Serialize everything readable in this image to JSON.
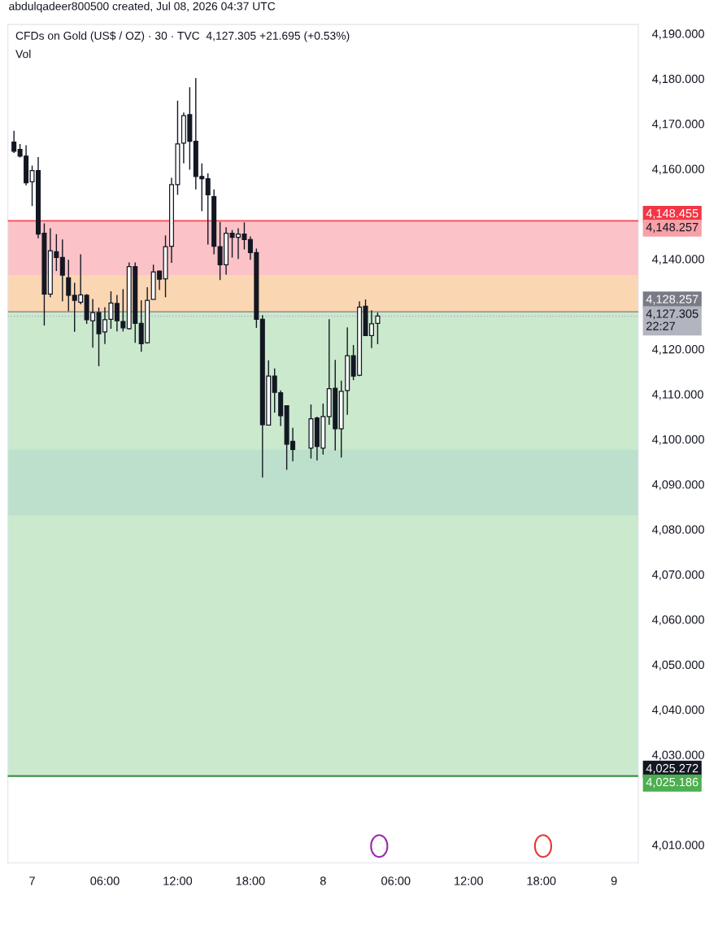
{
  "chart_data": {
    "type": "candlestick",
    "title": "CFDs on Gold (US$ / OZ) · 30 · TVC  4,127.305 +21.695 (+0.53%)",
    "annotations": [
      "abdulqadeer800500 created, Jul 08, 2026 04:37 UTC",
      "Vol"
    ],
    "color": "#131722",
    "x": [
      "2026-07-06T22:30",
      "2026-07-06T23:00",
      "2026-07-06T23:30",
      "2026-07-07T00:00",
      "2026-07-07T00:30",
      "2026-07-07T01:00",
      "2026-07-07T01:30",
      "2026-07-07T02:00",
      "2026-07-07T02:30",
      "2026-07-07T03:00",
      "2026-07-07T03:30",
      "2026-07-07T04:00",
      "2026-07-07T04:30",
      "2026-07-07T05:00",
      "2026-07-07T05:30",
      "2026-07-07T06:00",
      "2026-07-07T06:30",
      "2026-07-07T07:00",
      "2026-07-07T07:30",
      "2026-07-07T08:00",
      "2026-07-07T08:30",
      "2026-07-07T09:00",
      "2026-07-07T09:30",
      "2026-07-07T10:00",
      "2026-07-07T10:30",
      "2026-07-07T11:00",
      "2026-07-07T11:30",
      "2026-07-07T12:00",
      "2026-07-07T12:30",
      "2026-07-07T13:00",
      "2026-07-07T13:30",
      "2026-07-07T14:00",
      "2026-07-07T14:30",
      "2026-07-07T15:00",
      "2026-07-07T15:30",
      "2026-07-07T16:00",
      "2026-07-07T16:30",
      "2026-07-07T17:00",
      "2026-07-07T17:30",
      "2026-07-07T18:00",
      "2026-07-07T18:30",
      "2026-07-07T19:00",
      "2026-07-07T19:30",
      "2026-07-07T20:00",
      "2026-07-07T20:30",
      "2026-07-07T21:00",
      "2026-07-07T21:30",
      "2026-07-07T23:00",
      "2026-07-07T23:30",
      "2026-07-08T00:00",
      "2026-07-08T00:30",
      "2026-07-08T01:00",
      "2026-07-08T01:30",
      "2026-07-08T02:00",
      "2026-07-08T02:30",
      "2026-07-08T03:00",
      "2026-07-08T03:30",
      "2026-07-08T04:00",
      "2026-07-08T04:30"
    ],
    "ohlc": [
      [
        4165.9,
        4168.4,
        4163.5,
        4163.9
      ],
      [
        4164.3,
        4165.5,
        4162.5,
        4162.8
      ],
      [
        4162.8,
        4165.2,
        4156.3,
        4156.9
      ],
      [
        4157.1,
        4160.7,
        4151.7,
        4159.6
      ],
      [
        4159.6,
        4162.6,
        4144.6,
        4145.5
      ],
      [
        4145.7,
        4147.9,
        4125.2,
        4132.2
      ],
      [
        4132.2,
        4146.8,
        4131.5,
        4141.8
      ],
      [
        4141.6,
        4145.5,
        4137.3,
        4140.3
      ],
      [
        4140.3,
        4144.3,
        4130.6,
        4136.4
      ],
      [
        4135.8,
        4139.8,
        4128.4,
        4131.9
      ],
      [
        4131.9,
        4134.7,
        4123.8,
        4130.8
      ],
      [
        4130.4,
        4141.0,
        4129.9,
        4132.0
      ],
      [
        4131.9,
        4132.2,
        4125.6,
        4126.5
      ],
      [
        4126.3,
        4131.1,
        4120.3,
        4128.1
      ],
      [
        4128.1,
        4129.2,
        4116.2,
        4123.4
      ],
      [
        4123.8,
        4129.3,
        4121.1,
        4126.5
      ],
      [
        4126.6,
        4132.8,
        4124.5,
        4130.2
      ],
      [
        4130.1,
        4132.0,
        4123.9,
        4126.3
      ],
      [
        4126.1,
        4133.3,
        4123.9,
        4124.7
      ],
      [
        4124.5,
        4139.2,
        4124.3,
        4138.3
      ],
      [
        4138.3,
        4139.2,
        4121.4,
        4125.7
      ],
      [
        4125.7,
        4130.8,
        4119.4,
        4121.2
      ],
      [
        4121.4,
        4133.7,
        4121.2,
        4130.8
      ],
      [
        4131.0,
        4138.7,
        4131.0,
        4137.1
      ],
      [
        4137.3,
        4137.4,
        4133.1,
        4135.5
      ],
      [
        4135.6,
        4145.2,
        4131.5,
        4142.7
      ],
      [
        4142.8,
        4158.0,
        4139.1,
        4156.5
      ],
      [
        4156.5,
        4175.1,
        4154.2,
        4165.5
      ],
      [
        4165.7,
        4172.5,
        4161.2,
        4171.8
      ],
      [
        4172.0,
        4178.1,
        4159.8,
        4166.1
      ],
      [
        4166.1,
        4180.1,
        4155.4,
        4158.3
      ],
      [
        4158.3,
        4161.2,
        4150.6,
        4157.8
      ],
      [
        4157.8,
        4159.0,
        4143.2,
        4154.2
      ],
      [
        4153.8,
        4155.4,
        4141.0,
        4142.8
      ],
      [
        4142.7,
        4148.2,
        4135.3,
        4138.7
      ],
      [
        4138.7,
        4147.0,
        4136.5,
        4145.7
      ],
      [
        4145.7,
        4146.4,
        4140.3,
        4144.8
      ],
      [
        4144.8,
        4146.8,
        4140.0,
        4145.5
      ],
      [
        4145.5,
        4148.1,
        4142.1,
        4144.3
      ],
      [
        4144.3,
        4145.0,
        4139.8,
        4141.4
      ],
      [
        4141.4,
        4142.3,
        4124.7,
        4126.6
      ],
      [
        4126.6,
        4127.5,
        4091.5,
        4103.2
      ],
      [
        4103.1,
        4117.5,
        4103.1,
        4114.0
      ],
      [
        4114.0,
        4115.7,
        4105.9,
        4110.4
      ],
      [
        4110.3,
        4110.8,
        4102.9,
        4105.2
      ],
      [
        4107.4,
        4107.4,
        4093.2,
        4098.9
      ],
      [
        4099.5,
        4102.5,
        4095.1,
        4097.7
      ],
      [
        4098.0,
        4107.7,
        4095.7,
        4104.5
      ],
      [
        4104.7,
        4105.0,
        4095.3,
        4098.4
      ],
      [
        4098.0,
        4107.9,
        4096.6,
        4105.0
      ],
      [
        4105.0,
        4126.6,
        4103.2,
        4111.2
      ],
      [
        4111.3,
        4117.6,
        4097.5,
        4102.3
      ],
      [
        4102.3,
        4113.0,
        4095.9,
        4110.6
      ],
      [
        4110.8,
        4124.8,
        4105.4,
        4118.5
      ],
      [
        4118.5,
        4120.9,
        4113.1,
        4114.0
      ],
      [
        4114.2,
        4130.6,
        4114.0,
        4129.3
      ],
      [
        4129.5,
        4131.0,
        4123.0,
        4123.0
      ],
      [
        4123.0,
        4128.6,
        4120.2,
        4125.6
      ],
      [
        4125.7,
        4128.1,
        4121.1,
        4127.305
      ]
    ],
    "xlim": [
      "2026-07-06T22:00",
      "2026-07-09T02:00"
    ],
    "xticks": [
      {
        "value": "2026-07-07",
        "label": "7"
      },
      {
        "value": "2026-07-07T06:00",
        "label": "06:00"
      },
      {
        "value": "2026-07-07T12:00",
        "label": "12:00"
      },
      {
        "value": "2026-07-07T18:00",
        "label": "18:00"
      },
      {
        "value": "2026-07-08",
        "label": "8"
      },
      {
        "value": "2026-07-08T06:00",
        "label": "06:00"
      },
      {
        "value": "2026-07-08T12:00",
        "label": "12:00"
      },
      {
        "value": "2026-07-08T18:00",
        "label": "18:00"
      },
      {
        "value": "2026-07-09",
        "label": "9"
      }
    ],
    "ylim": [
      4006,
      4192
    ],
    "yticks": [
      {
        "value": 4010,
        "label": "4,010.000"
      },
      {
        "value": 4030,
        "label": "4,030.000"
      },
      {
        "value": 4040,
        "label": "4,040.000"
      },
      {
        "value": 4050,
        "label": "4,050.000"
      },
      {
        "value": 4060,
        "label": "4,060.000"
      },
      {
        "value": 4070,
        "label": "4,070.000"
      },
      {
        "value": 4080,
        "label": "4,080.000"
      },
      {
        "value": 4090,
        "label": "4,090.000"
      },
      {
        "value": 4100,
        "label": "4,100.000"
      },
      {
        "value": 4110,
        "label": "4,110.000"
      },
      {
        "value": 4120,
        "label": "4,120.000"
      },
      {
        "value": 4140,
        "label": "4,140.000"
      },
      {
        "value": 4160,
        "label": "4,160.000"
      },
      {
        "value": 4170,
        "label": "4,170.000"
      },
      {
        "value": 4180,
        "label": "4,180.000"
      },
      {
        "value": 4190,
        "label": "4,190.000"
      }
    ],
    "bands": [
      {
        "axis": "y",
        "from": 4083.1,
        "to": 4097.7,
        "color": "#c6dcf7"
      },
      {
        "axis": "y",
        "from": 4025.186,
        "to": 4128.257,
        "color": "#95d49b"
      },
      {
        "axis": "y",
        "from": 4128.257,
        "to": 4148.257,
        "color": "#f7868f"
      },
      {
        "axis": "y",
        "from": 4128.1,
        "to": 4136.4,
        "color": "#fbe9a0"
      }
    ],
    "ref_lines": [
      {
        "axis": "y",
        "value": 4148.455,
        "label": "4,148.455",
        "color": "#f23645"
      },
      {
        "axis": "y",
        "value": 4148.257,
        "label": "4,148.257",
        "color": "#f7a0a7"
      },
      {
        "axis": "y",
        "value": 4128.257,
        "label": "4,128.257",
        "color": "#787b86"
      },
      {
        "axis": "y",
        "value": 4127.305,
        "label": "4,127.305\n22:27",
        "color": "#b2b5be",
        "line_style": "dotted"
      },
      {
        "axis": "y",
        "value": 4025.272,
        "label": "4,025.272",
        "color": "#131722"
      },
      {
        "axis": "y",
        "value": 4025.186,
        "label": "4,025.186",
        "color": "#4caf50"
      }
    ],
    "grid": false,
    "legend": false
  }
}
